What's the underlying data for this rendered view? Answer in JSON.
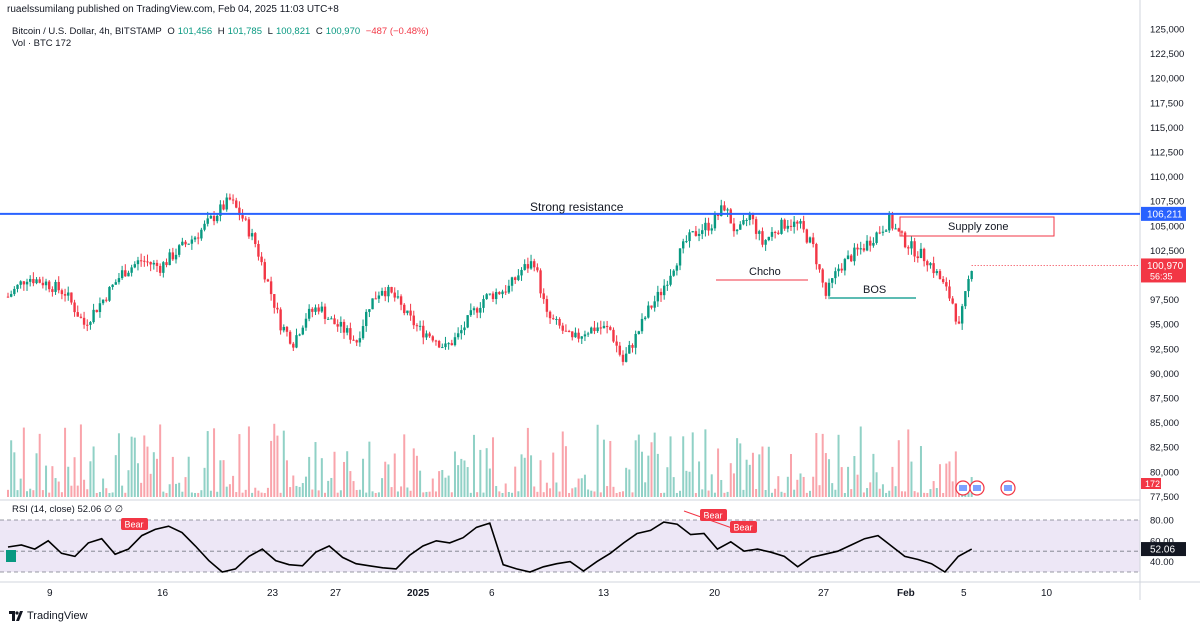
{
  "header": {
    "published": "ruaelssumilang published on TradingView.com, Feb 04, 2025 11:03 UTC+8"
  },
  "legend": {
    "symbol": "Bitcoin / U.S. Dollar, 4h, BITSTAMP",
    "open_label": "O",
    "open": "101,456",
    "high_label": "H",
    "high": "101,785",
    "low_label": "L",
    "low": "100,821",
    "close_label": "C",
    "close": "100,970",
    "change": "−487 (−0.48%)",
    "volume_label": "Vol · BTC",
    "volume": "172"
  },
  "rsi_legend": {
    "label": "RSI (14, close)",
    "value": "52.06",
    "extra": "∅ ∅"
  },
  "branding": {
    "name": "TradingView"
  },
  "colors": {
    "up": "#089981",
    "down": "#f23645",
    "resistance": "#2962ff",
    "rsi_line": "#000000",
    "rsi_band": "#ede7f6"
  },
  "annotations": {
    "resistance_label": "Strong resistance",
    "supply_label": "Supply zone",
    "choch_label": "Chcho",
    "bos_label": "BOS",
    "bear_labels": [
      "Bear",
      "Bear",
      "Bear"
    ]
  },
  "price_tags": {
    "resistance": "106,211",
    "last": "100,970",
    "countdown": "56:35",
    "volume": "172",
    "rsi": "52.06"
  },
  "chart_data": {
    "type": "candlestick",
    "title": "Bitcoin / U.S. Dollar, 4h, BITSTAMP",
    "xlabel": "",
    "ylabel": "",
    "ylim": [
      77500,
      125000
    ],
    "y_ticks": [
      "125,000",
      "122,500",
      "120,000",
      "117,500",
      "115,000",
      "112,500",
      "110,000",
      "107,500",
      "105,000",
      "102,500",
      "100,000",
      "97,500",
      "95,000",
      "92,500",
      "90,000",
      "87,500",
      "85,000",
      "82,500",
      "80,000",
      "77,500"
    ],
    "x_ticks": [
      "9",
      "16",
      "23",
      "27",
      "2025",
      "6",
      "13",
      "20",
      "27",
      "Feb",
      "5",
      "10"
    ],
    "grid": false,
    "resistance_level": 106211,
    "last_price": 100970,
    "close_path": [
      [
        0,
        97800
      ],
      [
        6,
        99800
      ],
      [
        12,
        99200
      ],
      [
        18,
        98200
      ],
      [
        24,
        95000
      ],
      [
        30,
        97500
      ],
      [
        36,
        100200
      ],
      [
        42,
        101500
      ],
      [
        48,
        100800
      ],
      [
        54,
        102600
      ],
      [
        60,
        104200
      ],
      [
        66,
        106300
      ],
      [
        70,
        107600
      ],
      [
        74,
        105800
      ],
      [
        78,
        103200
      ],
      [
        82,
        99200
      ],
      [
        86,
        95000
      ],
      [
        90,
        93200
      ],
      [
        94,
        95800
      ],
      [
        98,
        96800
      ],
      [
        102,
        95300
      ],
      [
        106,
        94400
      ],
      [
        110,
        93300
      ],
      [
        114,
        97000
      ],
      [
        118,
        98700
      ],
      [
        122,
        97700
      ],
      [
        126,
        95800
      ],
      [
        130,
        94400
      ],
      [
        134,
        93800
      ],
      [
        138,
        92600
      ],
      [
        142,
        93800
      ],
      [
        146,
        95800
      ],
      [
        150,
        97600
      ],
      [
        154,
        98200
      ],
      [
        158,
        98700
      ],
      [
        162,
        100500
      ],
      [
        166,
        101400
      ],
      [
        170,
        95800
      ],
      [
        174,
        94700
      ],
      [
        178,
        93300
      ],
      [
        182,
        94300
      ],
      [
        186,
        94700
      ],
      [
        190,
        94400
      ],
      [
        194,
        91200
      ],
      [
        198,
        93700
      ],
      [
        202,
        96400
      ],
      [
        206,
        98300
      ],
      [
        210,
        101000
      ],
      [
        214,
        103400
      ],
      [
        218,
        104600
      ],
      [
        222,
        105200
      ],
      [
        226,
        107000
      ],
      [
        230,
        104000
      ],
      [
        234,
        106100
      ],
      [
        238,
        103200
      ],
      [
        242,
        104600
      ],
      [
        246,
        105400
      ],
      [
        250,
        104900
      ],
      [
        254,
        102800
      ],
      [
        258,
        97900
      ],
      [
        262,
        100700
      ],
      [
        266,
        101900
      ],
      [
        270,
        102900
      ],
      [
        274,
        104200
      ],
      [
        278,
        105500
      ],
      [
        282,
        103700
      ],
      [
        286,
        102500
      ],
      [
        290,
        101600
      ],
      [
        294,
        99600
      ],
      [
        298,
        97200
      ],
      [
        300,
        94600
      ],
      [
        302,
        97800
      ],
      [
        304,
        100970
      ]
    ],
    "rsi": {
      "upper": 80,
      "middle": 50,
      "lower": 30,
      "ylim": [
        20,
        85
      ],
      "y_ticks": [
        "80.00",
        "60.00",
        "40.00"
      ],
      "values": [
        54,
        56,
        52,
        60,
        48,
        45,
        58,
        62,
        47,
        52,
        65,
        71,
        74,
        68,
        55,
        41,
        30,
        33,
        45,
        52,
        41,
        37,
        36,
        49,
        55,
        44,
        38,
        36,
        34,
        33,
        46,
        55,
        60,
        58,
        63,
        73,
        77,
        37,
        33,
        30,
        35,
        38,
        40,
        31,
        40,
        48,
        58,
        67,
        70,
        78,
        76,
        66,
        67,
        52,
        59,
        50,
        52,
        49,
        45,
        35,
        44,
        47,
        50,
        56,
        62,
        65,
        55,
        45,
        42,
        38,
        30,
        45,
        52.06
      ]
    },
    "volume": {
      "last": 172
    }
  }
}
